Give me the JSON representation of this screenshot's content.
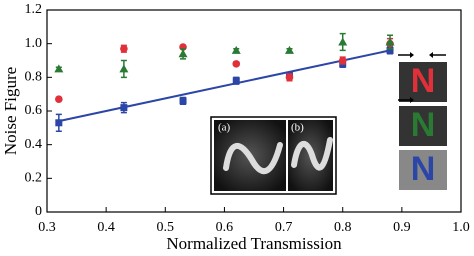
{
  "chart_data": {
    "type": "scatter",
    "xlabel": "Normalized Transmission",
    "ylabel": "Noise Figure",
    "xlim": [
      0.3,
      1.0
    ],
    "ylim": [
      0,
      1.2
    ],
    "xticks": [
      0.3,
      0.4,
      0.5,
      0.6,
      0.7,
      0.8,
      0.9,
      {
        "value": 1.0,
        "label": "1.0"
      }
    ],
    "yticks": [
      0,
      0.2,
      0.4,
      0.6,
      0.8,
      {
        "value": 1.0,
        "label": "1.0"
      },
      1.2
    ],
    "x": [
      0.32,
      0.43,
      0.53,
      0.62,
      0.71,
      0.8,
      0.88
    ],
    "series": [
      {
        "color": "#2b46a6",
        "marker": "square",
        "values": [
          0.53,
          0.62,
          0.66,
          0.78,
          0.81,
          0.88,
          0.96
        ],
        "errors": [
          0.05,
          0.03,
          0.02,
          0.02,
          0.02,
          0.02,
          0.02
        ]
      },
      {
        "color": "#e0303a",
        "marker": "circle",
        "values": [
          0.67,
          0.97,
          0.98,
          0.88,
          0.8,
          0.9,
          1.0
        ],
        "errors": [
          0.01,
          0.02,
          0.01,
          0.01,
          0.02,
          0.02,
          0.03
        ]
      },
      {
        "color": "#2a7a34",
        "marker": "triangle",
        "values": [
          0.85,
          0.85,
          0.94,
          0.96,
          0.96,
          1.01,
          1.01
        ],
        "errors": [
          0.01,
          0.05,
          0.03,
          0.01,
          0.01,
          0.05,
          0.04
        ]
      }
    ],
    "fit": {
      "color": "#2b46a6",
      "x": [
        0.32,
        0.88
      ],
      "y": [
        0.54,
        0.96
      ]
    },
    "inset_labels": [
      "(a)",
      "(b)"
    ],
    "side_icons": [
      "N",
      "N",
      "N"
    ]
  }
}
